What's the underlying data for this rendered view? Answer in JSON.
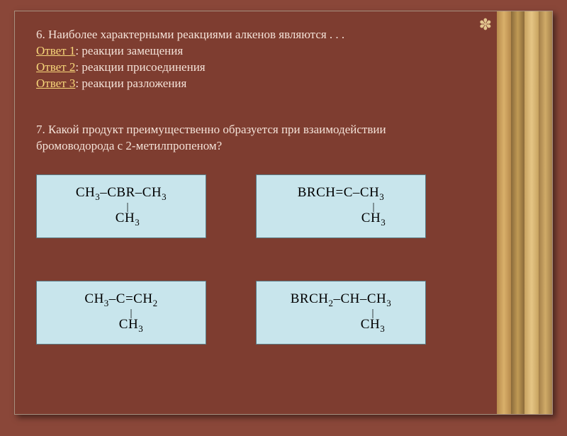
{
  "colors": {
    "page_bg": "#8a4739",
    "slide_bg": "#7e3d30",
    "slide_border": "#a89080",
    "text_body": "#f4e2d8",
    "link": "#f8d77a",
    "formula_bg": "#c8e5ec",
    "formula_border": "#5a7a84",
    "ornament": "#e2c68f",
    "stripes": [
      "#b78a4c",
      "#8a6a3a",
      "#c8a360",
      "#a5804a"
    ]
  },
  "ornament_glyph": "✽",
  "q6": {
    "prompt": "6. Наиболее характерными реакциями алкенов являются . . .",
    "answers": [
      {
        "label": "Ответ 1",
        "text": ": реакции замещения"
      },
      {
        "label": "Ответ 2",
        "text": ": реакции присоединения"
      },
      {
        "label": "Ответ 3",
        "text": ": реакции разложения"
      }
    ]
  },
  "q7": {
    "prompt": "7. Какой продукт преимущественно образуется при взаимодействии бромоводорода с 2-метилпропеном?"
  },
  "formulas": [
    {
      "line1": "CH₃–CBR–CH₃",
      "line2": "CH₃",
      "offset": "offset-a",
      "has_pipe": true
    },
    {
      "line1": "BRCH=C–CH₃",
      "line2": "CH₃",
      "offset": "offset-b",
      "has_pipe": true
    },
    {
      "line1": "CH₃–C=CH₂",
      "line2": "CH₃",
      "offset": "offset-c",
      "has_pipe": true
    },
    {
      "line1": "BRCH₂–CH–CH₃",
      "line2": "CH₃",
      "offset": "offset-d",
      "has_pipe": true
    }
  ]
}
